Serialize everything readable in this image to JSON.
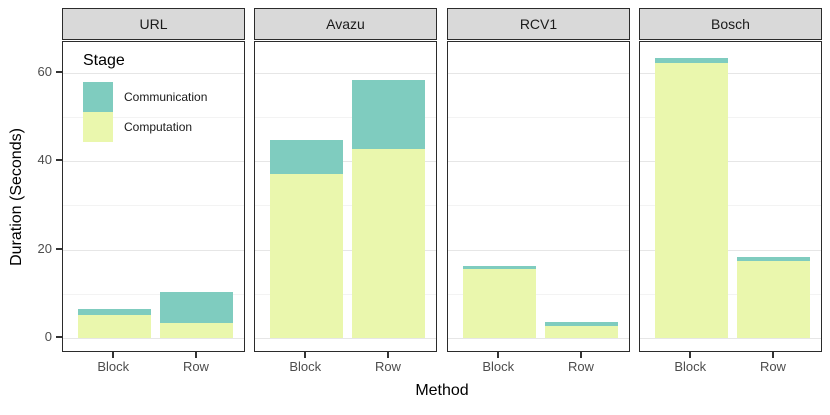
{
  "figure": {
    "y_axis_title": "Duration (Seconds)",
    "x_axis_title": "Method"
  },
  "legend": {
    "title": "Stage",
    "entries": [
      {
        "label": "Communication",
        "color": "#7FCCBF"
      },
      {
        "label": "Computation",
        "color": "#EAF7AD"
      }
    ]
  },
  "colors": {
    "communication": "#7FCCBF",
    "computation": "#EAF7AD",
    "strip_bg": "#D9D9D9",
    "panel_border": "#2B2B2B",
    "grid_major": "#E6E6E6",
    "grid_minor": "#F3F3F3",
    "tick_label": "#4D4D4D"
  },
  "chart_data": {
    "type": "bar",
    "stacked": true,
    "orientation": "vertical",
    "title": "",
    "xlabel": "Method",
    "ylabel": "Duration (Seconds)",
    "categories": [
      "Block",
      "Row"
    ],
    "stack_order": [
      "Computation",
      "Communication"
    ],
    "y_ticks": [
      0,
      20,
      40,
      60
    ],
    "y_minor_ticks": [
      10,
      30,
      50
    ],
    "ylim": [
      -3.3,
      66.5
    ],
    "grid": true,
    "legend_position": "inside top-left of first facet",
    "facets": [
      {
        "label": "URL",
        "bars": [
          {
            "category": "Block",
            "segments": {
              "Computation": 5.2,
              "Communication": 1.3
            },
            "total": 6.5
          },
          {
            "category": "Row",
            "segments": {
              "Computation": 3.4,
              "Communication": 6.9
            },
            "total": 10.3
          }
        ]
      },
      {
        "label": "Avazu",
        "bars": [
          {
            "category": "Block",
            "segments": {
              "Computation": 37.0,
              "Communication": 7.8
            },
            "total": 44.8
          },
          {
            "category": "Row",
            "segments": {
              "Computation": 42.8,
              "Communication": 15.5
            },
            "total": 58.3
          }
        ]
      },
      {
        "label": "RCV1",
        "bars": [
          {
            "category": "Block",
            "segments": {
              "Computation": 15.6,
              "Communication": 0.7
            },
            "total": 16.3
          },
          {
            "category": "Row",
            "segments": {
              "Computation": 2.8,
              "Communication": 0.9
            },
            "total": 3.7
          }
        ]
      },
      {
        "label": "Bosch",
        "bars": [
          {
            "category": "Block",
            "segments": {
              "Computation": 62.3,
              "Communication": 1.0
            },
            "total": 63.3
          },
          {
            "category": "Row",
            "segments": {
              "Computation": 17.4,
              "Communication": 0.9
            },
            "total": 18.3
          }
        ]
      }
    ]
  }
}
